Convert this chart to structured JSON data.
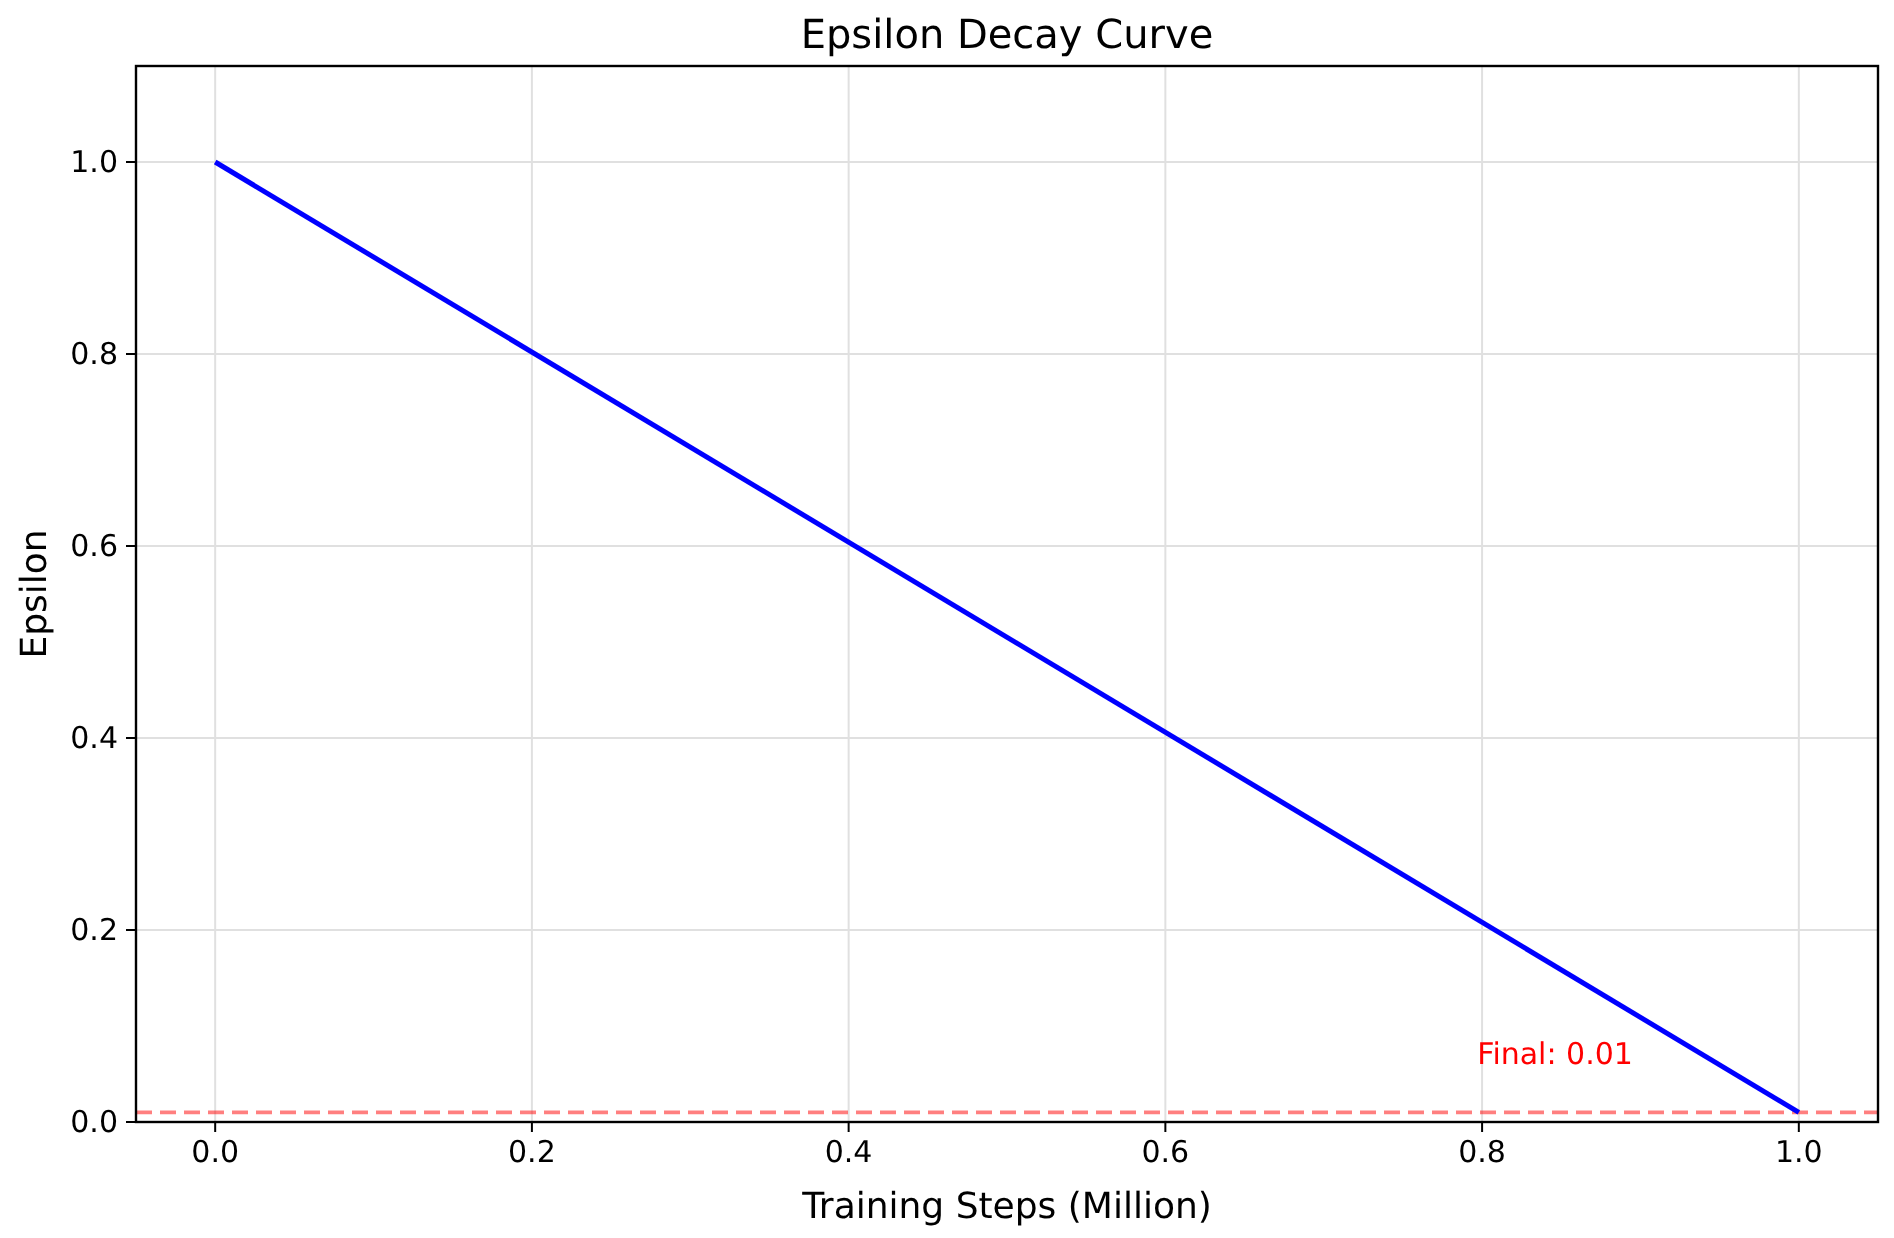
{
  "chart_data": {
    "type": "line",
    "title": "Epsilon Decay Curve",
    "xlabel": "Training Steps (Million)",
    "ylabel": "Epsilon",
    "x": [
      0,
      1
    ],
    "series": [
      {
        "color": "#0000ff",
        "values": [
          1.0,
          0.01
        ]
      }
    ],
    "xlim": [
      -0.05,
      1.05
    ],
    "xticks": [
      {
        "value": 0,
        "label": "0.0"
      },
      {
        "value": 0.2,
        "label": "0.2"
      },
      {
        "value": 0.4,
        "label": "0.4"
      },
      {
        "value": 0.6,
        "label": "0.6"
      },
      {
        "value": 0.8,
        "label": "0.8"
      },
      {
        "value": 1,
        "label": "1.0"
      }
    ],
    "ylim": [
      0,
      1.1
    ],
    "yticks": [
      {
        "value": 0,
        "label": "0.0"
      },
      {
        "value": 0.2,
        "label": "0.2"
      },
      {
        "value": 0.4,
        "label": "0.4"
      },
      {
        "value": 0.6,
        "label": "0.6"
      },
      {
        "value": 0.8,
        "label": "0.8"
      },
      {
        "value": 1,
        "label": "1.0"
      }
    ],
    "grid": true,
    "line_style": "solid",
    "marker": "none",
    "ref_lines": [
      {
        "axis": "y",
        "value": 0.01,
        "label": "Final: 0.01",
        "color": "#ff0000",
        "line_style": "dashed"
      }
    ]
  }
}
